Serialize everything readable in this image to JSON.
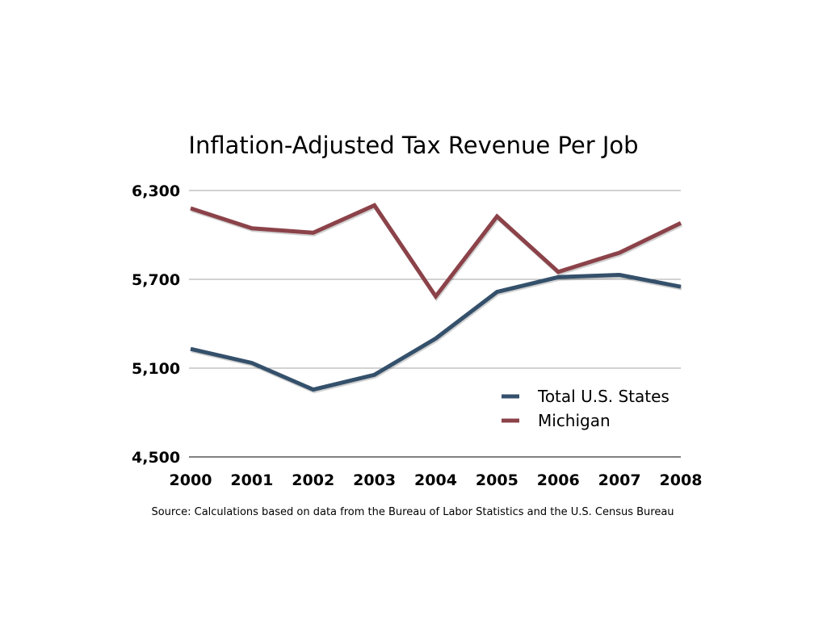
{
  "chart_data": {
    "type": "line",
    "title": "Inflation-Adjusted Tax Revenue Per Job",
    "xlabel": "",
    "ylabel": "",
    "x": [
      "2000",
      "2001",
      "2002",
      "2003",
      "2004",
      "2005",
      "2006",
      "2007",
      "2008"
    ],
    "ylim": [
      4500,
      6300
    ],
    "yticks": [
      4500,
      5100,
      5700,
      6300
    ],
    "ytick_labels": [
      "4,500",
      "5,100",
      "5,700",
      "6,300"
    ],
    "grid": true,
    "legend_position": "bottom-right",
    "series": [
      {
        "name": "Total U.S. States",
        "color": "#34506b",
        "values": [
          5230,
          5135,
          4955,
          5055,
          5300,
          5615,
          5715,
          5730,
          5650
        ]
      },
      {
        "name": "Michigan",
        "color": "#8b4249",
        "values": [
          6180,
          6045,
          6015,
          6200,
          5585,
          6125,
          5750,
          5880,
          6080
        ]
      }
    ],
    "source": "Source: Calculations based on data from the Bureau of Labor Statistics and the U.S. Census Bureau"
  }
}
